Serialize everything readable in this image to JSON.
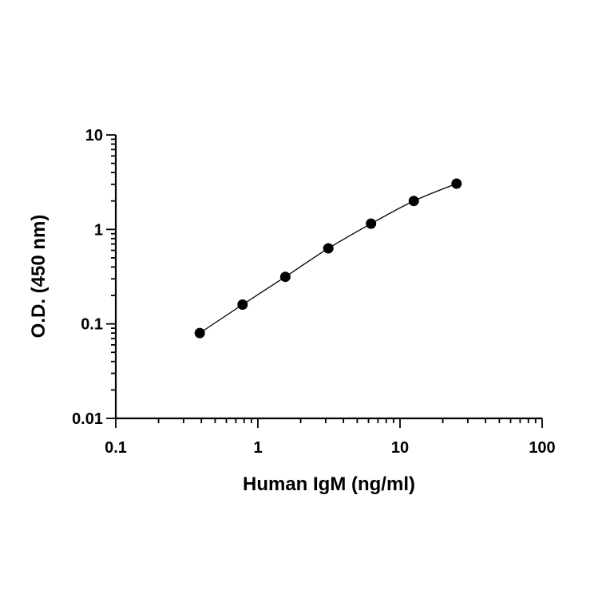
{
  "chart_data": {
    "type": "scatter",
    "xlabel": "Human IgM (ng/ml)",
    "ylabel": "O.D. (450 nm)",
    "x_scale": "log",
    "y_scale": "log",
    "xlim": [
      0.1,
      100
    ],
    "ylim": [
      0.01,
      10
    ],
    "x_ticks": [
      "0.1",
      "1",
      "10",
      "100"
    ],
    "y_ticks": [
      "0.01",
      "0.1",
      "1",
      "10"
    ],
    "x_tick_values": [
      0.1,
      1,
      10,
      100
    ],
    "y_tick_values": [
      0.01,
      0.1,
      1,
      10
    ],
    "grid": false,
    "series": [
      {
        "x": [
          0.39,
          0.78,
          1.56,
          3.13,
          6.25,
          12.5,
          25
        ],
        "y": [
          0.08,
          0.16,
          0.315,
          0.63,
          1.15,
          2.0,
          3.05
        ],
        "fit_curve": true
      }
    ],
    "point_color": "#000000"
  }
}
